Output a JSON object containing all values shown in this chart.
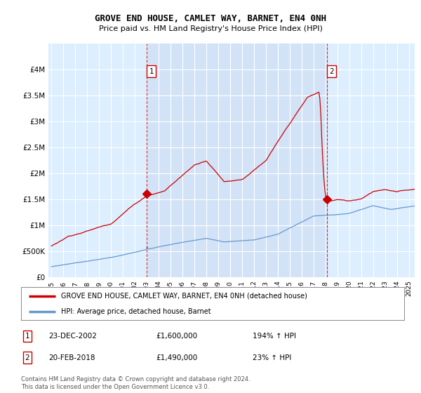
{
  "title": "GROVE END HOUSE, CAMLET WAY, BARNET, EN4 0NH",
  "subtitle": "Price paid vs. HM Land Registry's House Price Index (HPI)",
  "legend_line1": "GROVE END HOUSE, CAMLET WAY, BARNET, EN4 0NH (detached house)",
  "legend_line2": "HPI: Average price, detached house, Barnet",
  "footer": "Contains HM Land Registry data © Crown copyright and database right 2024.\nThis data is licensed under the Open Government Licence v3.0.",
  "red_color": "#cc0000",
  "blue_color": "#6699cc",
  "plot_bg": "#ddeeff",
  "shade_color": "#ccddf0",
  "ylim": [
    0,
    4500000
  ],
  "yticks": [
    0,
    500000,
    1000000,
    1500000,
    2000000,
    2500000,
    3000000,
    3500000,
    4000000
  ],
  "ytick_labels": [
    "£0",
    "£500K",
    "£1M",
    "£1.5M",
    "£2M",
    "£2.5M",
    "£3M",
    "£3.5M",
    "£4M"
  ],
  "xlim_start": 1994.75,
  "xlim_end": 2025.5,
  "sale1_x": 2003.0,
  "sale1_y": 1600000,
  "sale2_x": 2018.13,
  "sale2_y": 1490000,
  "note_row1_label": "1",
  "note_row1_date": "23-DEC-2002",
  "note_row1_price": "£1,600,000",
  "note_row1_pct": "194% ↑ HPI",
  "note_row2_label": "2",
  "note_row2_date": "20-FEB-2018",
  "note_row2_price": "£1,490,000",
  "note_row2_pct": "23% ↑ HPI"
}
